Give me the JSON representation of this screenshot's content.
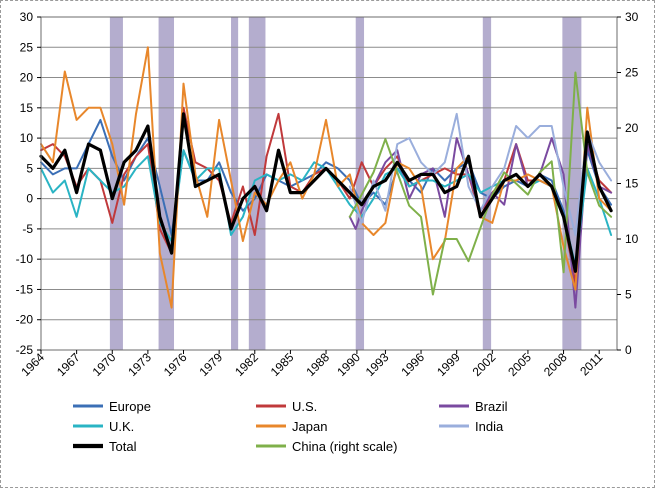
{
  "chart_data": {
    "type": "line",
    "y_left": {
      "min": -25,
      "max": 30,
      "ticks": [
        30,
        25,
        20,
        15,
        10,
        5,
        0,
        -5,
        -10,
        -15,
        -20,
        -25
      ]
    },
    "y_right": {
      "min": 0,
      "max": 30,
      "ticks": [
        30,
        25,
        20,
        15,
        10,
        5,
        0
      ]
    },
    "x_range": [
      1964,
      2012.5
    ],
    "x_ticks": [
      "1964",
      "1967",
      "1970",
      "1973",
      "1976",
      "1979",
      "1982",
      "1985",
      "1988",
      "1990",
      "1993",
      "1996",
      "1999",
      "2002",
      "2005",
      "2008",
      "2011"
    ],
    "x_tick_years": [
      1964,
      1967,
      1970,
      1973,
      1976,
      1979,
      1982,
      1985,
      1988,
      1990.6,
      1993,
      1996,
      1999,
      2002,
      2005,
      2008,
      2011
    ],
    "shaded_periods": [
      [
        1969.8,
        1970.9
      ],
      [
        1973.9,
        1975.2
      ],
      [
        1980.0,
        1980.6
      ],
      [
        1981.5,
        1982.9
      ],
      [
        1990.5,
        1991.2
      ],
      [
        2001.2,
        2001.9
      ],
      [
        2007.9,
        2009.5
      ]
    ],
    "shade_color": "#a79fc6",
    "grid": "horizontal",
    "series": [
      {
        "name": "Europe",
        "color": "#3b6fb6",
        "width": 2,
        "axis": "left",
        "x": [
          1964,
          1965,
          1966,
          1967,
          1968,
          1969,
          1970,
          1971,
          1972,
          1973,
          1974,
          1975,
          1976,
          1977,
          1978,
          1979,
          1980,
          1981,
          1982,
          1983,
          1984,
          1985,
          1986,
          1987,
          1988,
          1989,
          1990,
          1991,
          1992,
          1993,
          1994,
          1995,
          1996,
          1997,
          1998,
          1999,
          2000,
          2001,
          2002,
          2003,
          2004,
          2005,
          2006,
          2007,
          2008,
          2009,
          2010,
          2011,
          2012
        ],
        "y": [
          6,
          4,
          5,
          5,
          9,
          13,
          7,
          3,
          7,
          10,
          2,
          -6,
          8,
          3,
          3,
          6,
          1,
          -2,
          0,
          4,
          3,
          2,
          3,
          4,
          6,
          5,
          3,
          -1,
          1,
          -1,
          5,
          3,
          1,
          5,
          3,
          5,
          6,
          1,
          0,
          2,
          3,
          2,
          4,
          3,
          -2,
          -12,
          8,
          2,
          -1
        ]
      },
      {
        "name": "U.S.",
        "color": "#c0393b",
        "width": 2,
        "axis": "left",
        "x": [
          1964,
          1965,
          1966,
          1967,
          1968,
          1969,
          1970,
          1971,
          1972,
          1973,
          1974,
          1975,
          1976,
          1977,
          1978,
          1979,
          1980,
          1981,
          1982,
          1983,
          1984,
          1985,
          1986,
          1987,
          1988,
          1989,
          1990,
          1991,
          1992,
          1993,
          1994,
          1995,
          1996,
          1997,
          1998,
          1999,
          2000,
          2001,
          2002,
          2003,
          2004,
          2005,
          2006,
          2007,
          2008,
          2009,
          2010,
          2011,
          2012
        ],
        "y": [
          8,
          9,
          7,
          2,
          5,
          3,
          -4,
          4,
          7,
          9,
          -5,
          -9,
          15,
          6,
          5,
          3,
          -4,
          2,
          -6,
          7,
          14,
          2,
          1,
          4,
          5,
          3,
          0,
          6,
          2,
          5,
          7,
          2,
          3,
          4,
          5,
          4,
          4,
          -3,
          1,
          3,
          9,
          3,
          3,
          2,
          -3,
          -14,
          9,
          3,
          1
        ]
      },
      {
        "name": "Brazil",
        "color": "#7a4aa0",
        "width": 2,
        "axis": "left",
        "x": [
          1990,
          1990.5,
          1991,
          1992,
          1993,
          1994,
          1995,
          1996,
          1997,
          1998,
          1999,
          2000,
          2001,
          2002,
          2003,
          2004,
          2005,
          2006,
          2007,
          2008,
          2009,
          2010,
          2011,
          2012
        ],
        "y": [
          -3,
          -5,
          -2,
          2,
          6,
          8,
          0,
          4,
          5,
          -3,
          10,
          4,
          -2,
          1,
          -1,
          9,
          2,
          4,
          10,
          4,
          -18,
          9,
          2,
          1
        ]
      },
      {
        "name": "U.K.",
        "color": "#2ab4c4",
        "width": 2,
        "axis": "left",
        "x": [
          1964,
          1965,
          1966,
          1967,
          1968,
          1969,
          1970,
          1971,
          1972,
          1973,
          1974,
          1975,
          1976,
          1977,
          1978,
          1979,
          1980,
          1981,
          1982,
          1983,
          1984,
          1985,
          1986,
          1987,
          1988,
          1989,
          1990,
          1991,
          1992,
          1993,
          1994,
          1995,
          1996,
          1997,
          1998,
          1999,
          2000,
          2001,
          2002,
          2003,
          2004,
          2005,
          2006,
          2007,
          2008,
          2009,
          2010,
          2011,
          2012
        ],
        "y": [
          5,
          1,
          3,
          -3,
          5,
          3,
          1,
          2,
          5,
          7,
          -4,
          -7,
          8,
          3,
          5,
          5,
          -6,
          -3,
          3,
          4,
          3,
          4,
          3,
          6,
          5,
          2,
          -1,
          -3,
          0,
          4,
          5,
          2,
          3,
          3,
          2,
          3,
          4,
          1,
          2,
          3,
          4,
          2,
          3,
          2,
          -3,
          -11,
          5,
          0,
          -6
        ]
      },
      {
        "name": "Japan",
        "color": "#e8872b",
        "width": 2,
        "axis": "left",
        "x": [
          1964,
          1965,
          1966,
          1967,
          1968,
          1969,
          1970,
          1971,
          1972,
          1973,
          1974,
          1975,
          1976,
          1977,
          1978,
          1979,
          1980,
          1981,
          1982,
          1983,
          1984,
          1985,
          1986,
          1987,
          1988,
          1989,
          1990,
          1991,
          1992,
          1993,
          1994,
          1995,
          1996,
          1997,
          1998,
          1999,
          2000,
          2001,
          2002,
          2003,
          2004,
          2005,
          2006,
          2007,
          2008,
          2009,
          2010,
          2011,
          2012
        ],
        "y": [
          9,
          6,
          21,
          13,
          15,
          15,
          9,
          -1,
          14,
          25,
          -9,
          -18,
          19,
          4,
          -3,
          13,
          3,
          -7,
          1,
          -1,
          3,
          6,
          0,
          4,
          13,
          2,
          4,
          -4,
          -6,
          -4,
          6,
          5,
          2,
          -10,
          -7,
          5,
          7,
          -3,
          -4,
          3,
          3,
          4,
          3,
          2,
          -8,
          -15,
          15,
          0,
          -2
        ]
      },
      {
        "name": "India",
        "color": "#9aaedc",
        "width": 2,
        "axis": "left",
        "x": [
          1990,
          1991,
          1992,
          1993,
          1994,
          1995,
          1996,
          1997,
          1998,
          1999,
          2000,
          2001,
          2002,
          2003,
          2004,
          2005,
          2006,
          2007,
          2008,
          2009,
          2010,
          2011,
          2012
        ],
        "y": [
          2,
          -4,
          3,
          -2,
          9,
          10,
          6,
          4,
          6,
          14,
          2,
          -2,
          2,
          5,
          12,
          10,
          12,
          12,
          2,
          -6,
          11,
          6,
          3
        ]
      },
      {
        "name": "China (right scale)",
        "color": "#7fb04a",
        "width": 2,
        "axis": "right",
        "x": [
          1990,
          1991,
          1992,
          1993,
          1994,
          1995,
          1996,
          1997,
          1998,
          1999,
          2000,
          2001,
          2002,
          2003,
          2004,
          2005,
          2006,
          2007,
          2008,
          2009,
          2010,
          2011,
          2012
        ],
        "y": [
          12,
          14,
          16,
          19,
          16,
          13,
          12,
          5,
          10,
          10,
          8,
          11,
          14,
          16,
          15,
          14,
          16,
          17,
          7,
          25,
          16,
          13,
          12
        ]
      },
      {
        "name": "Total",
        "color": "#000000",
        "width": 3.2,
        "axis": "left",
        "x": [
          1964,
          1965,
          1966,
          1967,
          1968,
          1969,
          1970,
          1971,
          1972,
          1973,
          1974,
          1975,
          1976,
          1977,
          1978,
          1979,
          1980,
          1981,
          1982,
          1983,
          1984,
          1985,
          1986,
          1987,
          1988,
          1989,
          1990,
          1991,
          1992,
          1993,
          1994,
          1995,
          1996,
          1997,
          1998,
          1999,
          2000,
          2001,
          2002,
          2003,
          2004,
          2005,
          2006,
          2007,
          2008,
          2009,
          2010,
          2011,
          2012
        ],
        "y": [
          7,
          5,
          8,
          1,
          9,
          8,
          0,
          6,
          8,
          12,
          -3,
          -9,
          14,
          2,
          3,
          4,
          -5,
          0,
          2,
          -2,
          8,
          1,
          1,
          3,
          5,
          3,
          1,
          -1,
          2,
          3,
          6,
          3,
          4,
          4,
          1,
          2,
          7,
          -3,
          0,
          3,
          4,
          2,
          4,
          2,
          -3,
          -12,
          11,
          2,
          -2
        ]
      }
    ]
  },
  "legend": [
    {
      "label": "Europe",
      "color": "#3b6fb6",
      "width": 2
    },
    {
      "label": "U.S.",
      "color": "#c0393b",
      "width": 2
    },
    {
      "label": "Brazil",
      "color": "#7a4aa0",
      "width": 2
    },
    {
      "label": "U.K.",
      "color": "#2ab4c4",
      "width": 2
    },
    {
      "label": "Japan",
      "color": "#e8872b",
      "width": 2
    },
    {
      "label": "India",
      "color": "#9aaedc",
      "width": 2
    },
    {
      "label": "Total",
      "color": "#000000",
      "width": 3.2
    },
    {
      "label": "China (right scale)",
      "color": "#7fb04a",
      "width": 2
    }
  ]
}
